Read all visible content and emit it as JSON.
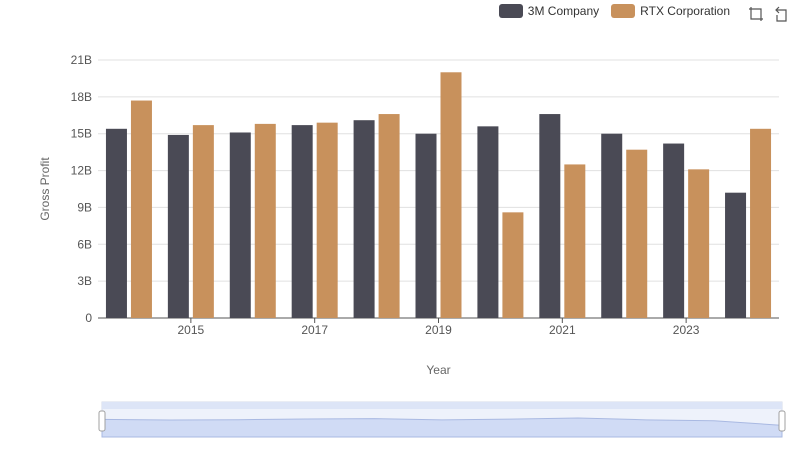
{
  "legend": {
    "items": [
      {
        "label": "3M Company",
        "color": "#4a4a55"
      },
      {
        "label": "RTX Corporation",
        "color": "#c8915c"
      }
    ]
  },
  "toolbox": {
    "icons": [
      "zoom-icon",
      "zoom-reset-icon"
    ]
  },
  "chart_data": {
    "type": "bar",
    "categories": [
      "2014",
      "2015",
      "2016",
      "2017",
      "2018",
      "2019",
      "2020",
      "2021",
      "2022",
      "2023",
      "2024"
    ],
    "series": [
      {
        "name": "3M Company",
        "color": "#4a4a55",
        "values": [
          15.4,
          14.9,
          15.1,
          15.7,
          16.1,
          15.0,
          15.6,
          16.6,
          15.0,
          14.2,
          10.2
        ]
      },
      {
        "name": "RTX Corporation",
        "color": "#c8915c",
        "values": [
          17.7,
          15.7,
          15.8,
          15.9,
          16.6,
          20.0,
          8.6,
          12.5,
          13.7,
          12.1,
          15.4
        ]
      }
    ],
    "xlabel": "Year",
    "ylabel": "Gross Profit",
    "ylim": [
      0,
      21
    ],
    "yticks": [
      0,
      3,
      6,
      9,
      12,
      15,
      18,
      21
    ],
    "ytick_labels": [
      "0",
      "3B",
      "6B",
      "9B",
      "12B",
      "15B",
      "18B",
      "21B"
    ],
    "xtick_labels": [
      "2015",
      "2017",
      "2019",
      "2021",
      "2023"
    ],
    "grid": true,
    "legend_position": "top-right"
  }
}
